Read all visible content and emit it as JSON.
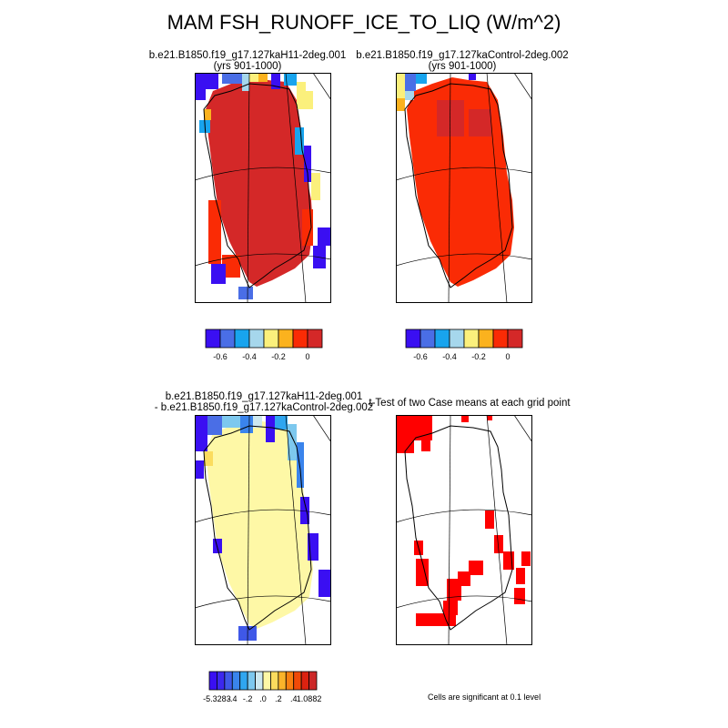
{
  "figure": {
    "title": "MAM FSH_RUNOFF_ICE_TO_LIQ (W/m^2)"
  },
  "panels": [
    {
      "id": "case1",
      "title_line1": "b.e21.B1850.f19_g17.127kaH11-2deg.001",
      "title_line2": "(yrs 901-1000)"
    },
    {
      "id": "case2",
      "title_line1": "b.e21.B1850.f19_g17.127kaControl-2deg.002",
      "title_line2": "(yrs 901-1000)"
    },
    {
      "id": "difference",
      "title_line1": "b.e21.B1850.f19_g17.127kaH11-2deg.001",
      "title_line2": "- b.e21.B1850.f19_g17.127kaControl-2deg.002"
    },
    {
      "id": "ttest",
      "title_line1": "t-Test of two Case means at each grid point",
      "title_line2": ""
    }
  ],
  "colorbars": {
    "case": {
      "colors": [
        "#3a0ff2",
        "#4a6ee6",
        "#18a4ee",
        "#a6d7ec",
        "#fbf07c",
        "#fbb21e",
        "#fa2b05",
        "#d42828"
      ],
      "tick_labels": [
        "-0.6",
        "-0.4",
        "-0.2",
        "0"
      ]
    },
    "diff": {
      "colors": [
        "#3a0ff2",
        "#3c28ee",
        "#3f58e8",
        "#3a84ec",
        "#2fa6f0",
        "#7dc8ee",
        "#cde8ef",
        "#fef8a6",
        "#fbdc5e",
        "#fab42a",
        "#f88010",
        "#f04a08",
        "#dc2210",
        "#cc2828"
      ],
      "tick_labels": [
        "-5.3283",
        "-.4",
        "-.2",
        ".0",
        ".2",
        ".4",
        "1.0882"
      ]
    }
  },
  "significance_note": "Cells are significant at 0.1 level",
  "chart_data": [
    {
      "type": "heatmap",
      "panel": "case1",
      "variable": "FSH_RUNOFF_ICE_TO_LIQ",
      "season": "MAM",
      "units": "W/m^2",
      "region": "Greenland",
      "colorbar_ticks": [
        -0.6,
        -0.4,
        -0.2,
        0
      ],
      "dominant_value_range": [
        0.0,
        0.05
      ],
      "description_of_values": "ice sheet interior ~0 (dark red); negative values (-0.6 to -0.1) along northern and eastern margins"
    },
    {
      "type": "heatmap",
      "panel": "case2",
      "variable": "FSH_RUNOFF_ICE_TO_LIQ",
      "season": "MAM",
      "units": "W/m^2",
      "region": "Greenland",
      "colorbar_ticks": [
        -0.6,
        -0.4,
        -0.2,
        0
      ],
      "dominant_value_range": [
        -0.05,
        0.05
      ],
      "description_of_values": "mostly near 0 (red / dark red); negative values in the northwest corner"
    },
    {
      "type": "heatmap",
      "panel": "difference",
      "units": "W/m^2",
      "region": "Greenland",
      "colorbar_ticks": [
        -5.3283,
        -0.4,
        -0.2,
        0.0,
        0.2,
        0.4,
        1.0882
      ],
      "data_min": -5.3283,
      "data_max": 1.0882,
      "description_of_values": "interior ~0 (pale yellow); negative differences along northern and eastern coast"
    },
    {
      "type": "heatmap",
      "panel": "ttest",
      "significance_level": 0.1,
      "description_of_values": "red cells mark significant grid points: northwest corner, north coast, central west and along east coast"
    }
  ]
}
